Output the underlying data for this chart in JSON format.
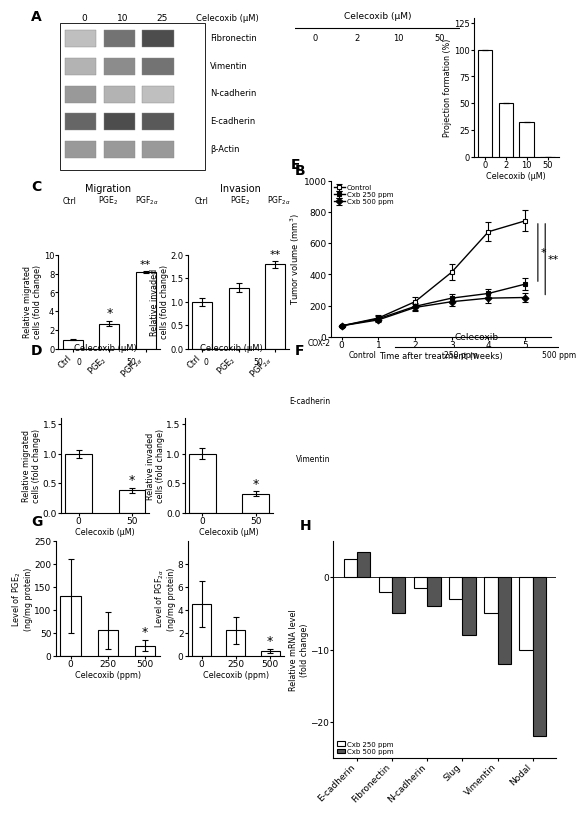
{
  "panel_B_bar": {
    "categories": [
      "0",
      "2",
      "10",
      "50"
    ],
    "values": [
      100,
      50,
      32,
      0
    ],
    "ylabel": "Projection formation (%)",
    "xlabel": "Celecoxib (μM)",
    "ylim": [
      0,
      130
    ],
    "yticks": [
      0,
      25,
      50,
      75,
      100,
      125
    ]
  },
  "panel_C_migration": {
    "categories": [
      "Ctrl",
      "PGE$_2$",
      "PGF$_{2\\alpha}$"
    ],
    "values": [
      1.0,
      2.7,
      8.2
    ],
    "errors": [
      0.1,
      0.25,
      0.12
    ],
    "ylabel": "Relative migrated\ncells (fold change)",
    "ylim": [
      0,
      10
    ],
    "yticks": [
      0,
      2,
      4,
      6,
      8,
      10
    ]
  },
  "panel_C_invasion": {
    "categories": [
      "Ctrl",
      "PGE$_2$",
      "PGF$_{2\\alpha}$"
    ],
    "values": [
      1.0,
      1.3,
      1.8
    ],
    "errors": [
      0.08,
      0.1,
      0.08
    ],
    "ylabel": "Relative invaded\ncells (fold change)",
    "ylim": [
      0,
      2.0
    ],
    "yticks": [
      0,
      0.5,
      1.0,
      1.5,
      2.0
    ]
  },
  "panel_D_migration": {
    "categories": [
      "0",
      "50"
    ],
    "values": [
      1.0,
      0.38
    ],
    "errors": [
      0.07,
      0.04
    ],
    "ylabel": "Relative migrated\ncells (fold change)",
    "xlabel": "Celecoxib (μM)",
    "ylim": [
      0,
      1.6
    ],
    "yticks": [
      0,
      0.5,
      1.0,
      1.5
    ]
  },
  "panel_D_invasion": {
    "categories": [
      "0",
      "50"
    ],
    "values": [
      1.0,
      0.32
    ],
    "errors": [
      0.09,
      0.04
    ],
    "ylabel": "Relative invaded\ncells (fold change)",
    "xlabel": "Celecoxib (μM)",
    "ylim": [
      0,
      1.6
    ],
    "yticks": [
      0,
      0.5,
      1.0,
      1.5
    ]
  },
  "panel_E": {
    "weeks": [
      0,
      1,
      2,
      3,
      4,
      5
    ],
    "control": [
      70,
      120,
      225,
      415,
      675,
      745
    ],
    "cxb250": [
      70,
      115,
      195,
      248,
      278,
      338
    ],
    "cxb500": [
      70,
      108,
      188,
      225,
      248,
      252
    ],
    "control_err": [
      8,
      18,
      32,
      50,
      60,
      68
    ],
    "cxb250_err": [
      8,
      15,
      22,
      28,
      30,
      38
    ],
    "cxb500_err": [
      7,
      13,
      20,
      25,
      30,
      32
    ],
    "ylabel": "Tumor volume (mm$^3$)",
    "xlabel": "Time after treatment (weeks)",
    "ylim": [
      0,
      1000
    ],
    "yticks": [
      0,
      200,
      400,
      600,
      800,
      1000
    ]
  },
  "panel_G_PGE2": {
    "categories": [
      "0",
      "250",
      "500"
    ],
    "values": [
      130,
      55,
      22
    ],
    "errors": [
      80,
      40,
      12
    ],
    "ylabel": "Level of PGE$_2$\n(ng/mg protein)",
    "xlabel": "Celecoxib (ppm)",
    "ylim": [
      0,
      250
    ],
    "yticks": [
      0,
      50,
      100,
      150,
      200,
      250
    ]
  },
  "panel_G_PGF2a": {
    "categories": [
      "0",
      "250",
      "500"
    ],
    "values": [
      4.5,
      2.2,
      0.4
    ],
    "errors": [
      2.0,
      1.2,
      0.2
    ],
    "ylabel": "Level of PGF$_{2\\alpha}$\n(ng/mg protein)",
    "xlabel": "Celecoxib (ppm)",
    "ylim": [
      0,
      10
    ],
    "yticks": [
      0,
      2,
      4,
      6,
      8
    ]
  },
  "panel_H": {
    "categories": [
      "E-cadherin",
      "Fibronectin",
      "N-cadherin",
      "Slug",
      "Vimentin",
      "Nodal"
    ],
    "cxb250": [
      2.5,
      -2.0,
      -1.5,
      -3.0,
      -5.0,
      -10.0
    ],
    "cxb500": [
      3.5,
      -5.0,
      -4.0,
      -8.0,
      -12.0,
      -22.0
    ],
    "ylabel": "Relative mRNA level\n(fold change)",
    "ylim": [
      -25,
      5
    ],
    "yticks": [
      -20,
      -10,
      0
    ]
  }
}
